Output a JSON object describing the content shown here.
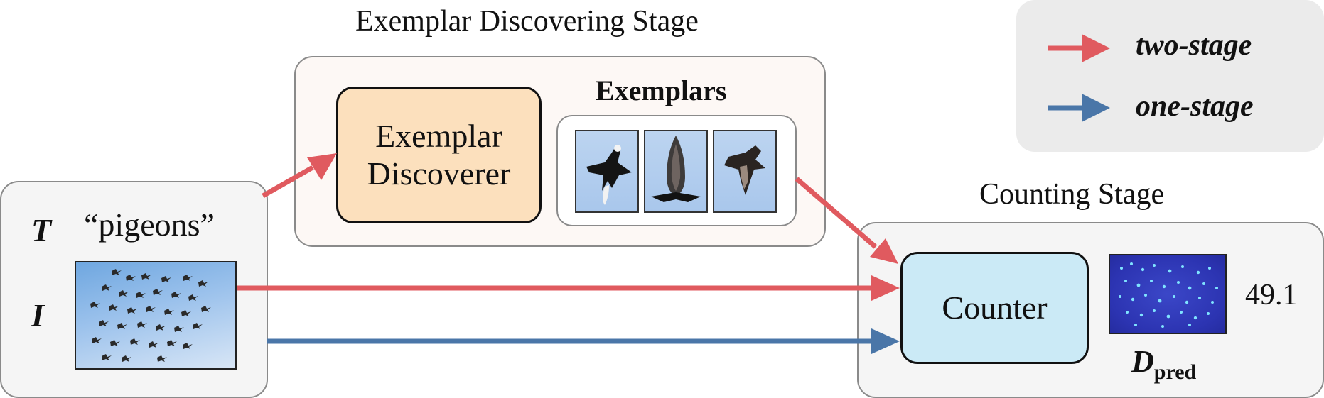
{
  "stages": {
    "discovering_label": "Exemplar Discovering Stage",
    "counting_label": "Counting Stage"
  },
  "discoverer": {
    "line1": "Exemplar",
    "line2": "Discoverer"
  },
  "exemplars": {
    "label": "Exemplars"
  },
  "inputs": {
    "text_symbol": "T",
    "text_prompt": "“pigeons”",
    "image_symbol": "I"
  },
  "counter": {
    "label": "Counter"
  },
  "output": {
    "density_symbol": "D",
    "density_subscript": "pred",
    "count_value": "49.1"
  },
  "legend": {
    "items": [
      {
        "label": "two-stage",
        "color": "#e05a5f"
      },
      {
        "label": "one-stage",
        "color": "#4a76a8"
      }
    ]
  },
  "colors": {
    "two_stage": "#e05a5f",
    "one_stage": "#4a76a8"
  }
}
